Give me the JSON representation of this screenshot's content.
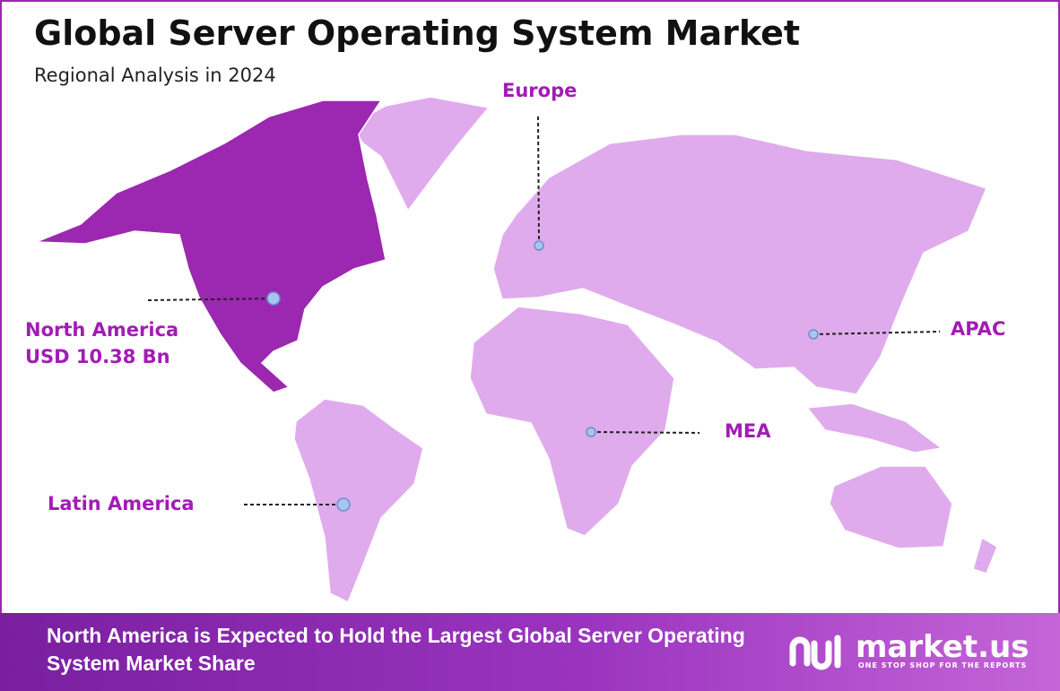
{
  "header": {
    "title": "Global Server Operating System Market",
    "subtitle": "Regional Analysis in 2024"
  },
  "regions": [
    {
      "name": "North America",
      "value": "USD 10.38 Bn"
    },
    {
      "name": "Europe"
    },
    {
      "name": "APAC"
    },
    {
      "name": "MEA"
    },
    {
      "name": "Latin America"
    }
  ],
  "footer": {
    "text": "North America is Expected to Hold the Largest Global Server Operating System Market Share",
    "logo": {
      "name": "market.us",
      "tagline": "ONE STOP SHOP FOR THE REPORTS"
    }
  }
}
